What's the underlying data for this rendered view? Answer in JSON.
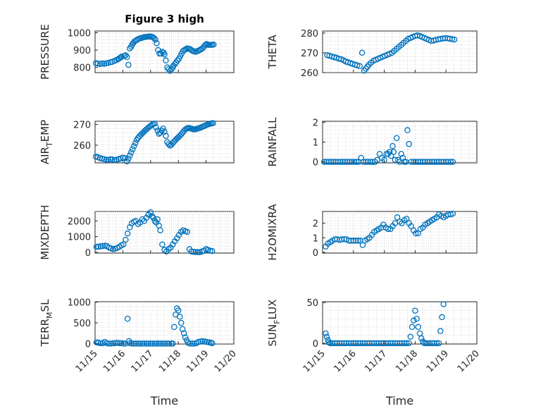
{
  "chart_data": [
    {
      "type": "scatter",
      "title": "Figure 3 high",
      "xlabel": "",
      "ylabel": "PRESSURE",
      "xlim": [
        0,
        5
      ],
      "ylim": [
        770,
        1010
      ],
      "yticks": [
        800,
        900,
        1000
      ],
      "color": "#0072BD",
      "grid": true,
      "x": [
        0.03,
        0.1,
        0.18,
        0.25,
        0.33,
        0.4,
        0.47,
        0.55,
        0.62,
        0.7,
        0.77,
        0.83,
        0.87,
        0.92,
        0.95,
        1.05,
        1.1,
        1.15,
        1.2,
        1.25,
        1.3,
        1.33,
        1.37,
        1.42,
        1.47,
        1.52,
        1.57,
        1.62,
        1.67,
        1.72,
        1.77,
        1.82,
        1.87,
        1.92,
        1.97,
        2.02,
        2.07,
        2.12,
        2.17,
        2.22,
        2.27,
        2.32,
        2.37,
        2.42,
        2.47,
        2.5,
        2.55,
        2.6,
        2.65,
        2.7,
        2.75,
        2.8,
        2.82,
        2.88,
        2.92,
        2.97,
        3.02,
        3.07,
        3.12,
        3.17,
        3.22,
        3.27,
        3.32,
        3.37,
        3.42,
        3.47,
        3.52,
        3.57,
        3.62,
        3.67,
        3.72,
        3.77,
        3.82,
        3.87,
        3.92,
        3.97,
        4.02,
        4.07,
        4.12,
        4.17,
        4.22,
        4.27
      ],
      "y": [
        825,
        822,
        820,
        823,
        821,
        824,
        826,
        830,
        832,
        838,
        842,
        848,
        852,
        857,
        862,
        866,
        870,
        860,
        815,
        910,
        920,
        930,
        940,
        950,
        955,
        960,
        965,
        968,
        970,
        972,
        975,
        976,
        977,
        978,
        978,
        978,
        975,
        970,
        960,
        940,
        900,
        880,
        880,
        890,
        885,
        875,
        840,
        800,
        790,
        780,
        790,
        800,
        810,
        820,
        830,
        840,
        850,
        865,
        880,
        895,
        900,
        905,
        910,
        908,
        906,
        900,
        895,
        892,
        890,
        893,
        896,
        900,
        905,
        910,
        920,
        930,
        935,
        930,
        930,
        930,
        930,
        932
      ]
    },
    {
      "type": "scatter",
      "title": "",
      "xlabel": "",
      "ylabel": "THETA",
      "xlim": [
        0,
        5
      ],
      "ylim": [
        260,
        281
      ],
      "yticks": [
        260,
        270,
        280
      ],
      "color": "#0072BD",
      "grid": true,
      "x": [
        0.15,
        0.22,
        0.3,
        0.38,
        0.45,
        0.52,
        0.6,
        0.68,
        0.75,
        0.82,
        0.9,
        0.97,
        1.05,
        1.12,
        1.2,
        1.28,
        1.35,
        1.4,
        1.45,
        1.5,
        1.57,
        1.65,
        1.72,
        1.8,
        1.87,
        1.95,
        2.02,
        2.1,
        2.17,
        2.25,
        2.32,
        2.4,
        2.47,
        2.55,
        2.62,
        2.7,
        2.77,
        2.85,
        2.92,
        3.0,
        3.07,
        3.15,
        3.22,
        3.3,
        3.37,
        3.45,
        3.52,
        3.6,
        3.67,
        3.75,
        3.82,
        3.9,
        3.97,
        4.05,
        4.12,
        4.2,
        4.27
      ],
      "y": [
        268.8,
        268.5,
        268.1,
        267.8,
        267.5,
        267,
        266.8,
        266.2,
        265.6,
        265.2,
        264.8,
        264.4,
        264,
        263.7,
        263.3,
        270,
        261,
        262,
        263,
        264,
        265,
        266,
        266.5,
        267,
        267.5,
        268,
        268.5,
        269,
        269.5,
        270,
        271,
        272,
        273,
        274,
        275,
        276,
        277,
        277.5,
        278,
        278.5,
        278.8,
        278.5,
        278,
        277.5,
        277,
        276.5,
        276,
        276.2,
        276.5,
        276.8,
        277,
        277.2,
        277.4,
        277.3,
        277.1,
        276.9,
        276.7
      ]
    },
    {
      "type": "scatter",
      "title": "",
      "xlabel": "",
      "ylabel": "AIR_TEMP",
      "ylabel_main": "AIR",
      "ylabel_sub": "T",
      "ylabel_tail": "EMP",
      "xlim": [
        0,
        5
      ],
      "ylim": [
        251.5,
        271.5
      ],
      "yticks": [
        260,
        270
      ],
      "color": "#0072BD",
      "grid": true,
      "x": [
        0.03,
        0.1,
        0.17,
        0.25,
        0.33,
        0.4,
        0.47,
        0.55,
        0.62,
        0.7,
        0.77,
        0.85,
        0.92,
        1.0,
        1.08,
        1.15,
        1.2,
        1.25,
        1.3,
        1.35,
        1.4,
        1.45,
        1.5,
        1.55,
        1.6,
        1.65,
        1.7,
        1.75,
        1.8,
        1.85,
        1.9,
        1.95,
        2.0,
        2.05,
        2.1,
        2.15,
        2.2,
        2.25,
        2.3,
        2.35,
        2.4,
        2.45,
        2.5,
        2.55,
        2.6,
        2.65,
        2.7,
        2.75,
        2.8,
        2.85,
        2.9,
        2.95,
        3.0,
        3.05,
        3.1,
        3.15,
        3.2,
        3.25,
        3.3,
        3.35,
        3.4,
        3.45,
        3.5,
        3.55,
        3.6,
        3.65,
        3.7,
        3.75,
        3.8,
        3.85,
        3.9,
        3.95,
        4.0,
        4.05,
        4.1,
        4.15,
        4.2,
        4.25
      ],
      "y": [
        254.5,
        254.2,
        253.8,
        253.5,
        253.3,
        253,
        253,
        253.2,
        253.1,
        252.8,
        253,
        253.3,
        253.6,
        254,
        253.8,
        252.2,
        253.5,
        255,
        256.5,
        258,
        259.5,
        261,
        262.5,
        263.5,
        264.3,
        265,
        265.7,
        266.3,
        267,
        267.6,
        268.2,
        268.8,
        269.3,
        269.8,
        270.2,
        270.4,
        268.5,
        267,
        265.5,
        266,
        267,
        268,
        266.5,
        264.5,
        261.5,
        260.5,
        259.8,
        260.2,
        261,
        261.8,
        262.5,
        263.2,
        263.8,
        264.5,
        265.2,
        266,
        266.8,
        267.5,
        268,
        268.3,
        268.2,
        268,
        267.8,
        267.6,
        267.6,
        267.8,
        268,
        268.2,
        268.4,
        268.7,
        269,
        269.3,
        269.6,
        269.9,
        270.1,
        270.3,
        270.5,
        270.6
      ]
    },
    {
      "type": "scatter",
      "title": "",
      "xlabel": "",
      "ylabel": "RAINFALL",
      "xlim": [
        0,
        5
      ],
      "ylim": [
        -0.05,
        2.05
      ],
      "yticks": [
        0,
        1,
        2
      ],
      "color": "#0072BD",
      "grid": true,
      "x": [
        0.05,
        0.12,
        0.2,
        0.28,
        0.35,
        0.42,
        0.5,
        0.58,
        0.65,
        0.72,
        0.8,
        0.88,
        0.95,
        1.02,
        1.1,
        1.17,
        1.25,
        1.32,
        1.4,
        1.47,
        1.55,
        1.62,
        1.7,
        1.77,
        1.85,
        1.92,
        2.0,
        2.07,
        2.12,
        2.17,
        2.22,
        2.27,
        2.3,
        2.35,
        2.4,
        2.45,
        2.5,
        2.55,
        2.6,
        2.65,
        2.7,
        2.75,
        2.8,
        2.87,
        2.95,
        3.02,
        3.1,
        3.17,
        3.25,
        3.32,
        3.4,
        3.47,
        3.55,
        3.62,
        3.7,
        3.77,
        3.85,
        3.92,
        4.0,
        4.07,
        4.15,
        4.22
      ],
      "y": [
        0,
        0,
        0,
        0,
        0,
        0,
        0,
        0,
        0,
        0,
        0,
        0,
        0,
        0,
        0,
        0,
        0.2,
        0,
        0,
        0,
        0,
        0,
        0,
        0.1,
        0.4,
        0.2,
        0.1,
        0.4,
        0.4,
        0.5,
        0.3,
        0.8,
        0.5,
        0.1,
        1.2,
        0.1,
        0,
        0.4,
        0.2,
        0,
        0,
        1.6,
        0.9,
        0,
        0,
        0,
        0,
        0,
        0,
        0,
        0,
        0,
        0,
        0,
        0,
        0,
        0,
        0,
        0,
        0,
        0,
        0
      ]
    },
    {
      "type": "scatter",
      "title": "",
      "xlabel": "",
      "ylabel": "MIXDEPTH",
      "xlim": [
        0,
        5
      ],
      "ylim": [
        -50,
        2600
      ],
      "yticks": [
        0,
        1000,
        2000
      ],
      "color": "#0072BD",
      "grid": true,
      "x": [
        0.05,
        0.12,
        0.2,
        0.28,
        0.35,
        0.42,
        0.5,
        0.58,
        0.65,
        0.72,
        0.8,
        0.88,
        0.95,
        1.02,
        1.1,
        1.17,
        1.25,
        1.32,
        1.4,
        1.47,
        1.55,
        1.62,
        1.7,
        1.77,
        1.85,
        1.92,
        2.0,
        2.05,
        2.1,
        2.15,
        2.2,
        2.25,
        2.3,
        2.35,
        2.42,
        2.5,
        2.57,
        2.65,
        2.72,
        2.8,
        2.87,
        2.95,
        3.02,
        3.1,
        3.17,
        3.25,
        3.32,
        3.4,
        3.47,
        3.55,
        3.62,
        3.7,
        3.77,
        3.85,
        3.92,
        4.0,
        4.07,
        4.15,
        4.22
      ],
      "y": [
        350,
        360,
        380,
        400,
        420,
        400,
        300,
        250,
        200,
        230,
        280,
        350,
        450,
        500,
        800,
        1200,
        1600,
        1850,
        1950,
        2000,
        1800,
        1900,
        2100,
        2000,
        2200,
        2400,
        2550,
        2300,
        2200,
        2000,
        1900,
        2100,
        1700,
        1400,
        500,
        150,
        50,
        200,
        300,
        500,
        700,
        900,
        1100,
        1300,
        1400,
        1350,
        1300,
        200,
        50,
        30,
        20,
        10,
        5,
        50,
        100,
        200,
        150,
        100,
        80
      ]
    },
    {
      "type": "scatter",
      "title": "",
      "xlabel": "",
      "ylabel": "H2OMIXRA",
      "xlim": [
        0,
        5
      ],
      "ylim": [
        -0.05,
        2.8
      ],
      "yticks": [
        0,
        1,
        2
      ],
      "color": "#0072BD",
      "grid": true,
      "x": [
        0.1,
        0.17,
        0.25,
        0.32,
        0.4,
        0.47,
        0.55,
        0.62,
        0.7,
        0.77,
        0.85,
        0.92,
        1.0,
        1.08,
        1.15,
        1.22,
        1.3,
        1.37,
        1.45,
        1.52,
        1.6,
        1.67,
        1.75,
        1.82,
        1.9,
        1.97,
        2.05,
        2.12,
        2.2,
        2.27,
        2.35,
        2.42,
        2.5,
        2.57,
        2.65,
        2.72,
        2.8,
        2.87,
        2.95,
        3.02,
        3.1,
        3.17,
        3.25,
        3.32,
        3.4,
        3.47,
        3.55,
        3.62,
        3.7,
        3.77,
        3.85,
        3.92,
        4.0,
        4.07,
        4.15,
        4.22
      ],
      "y": [
        0.4,
        0.6,
        0.7,
        0.8,
        0.9,
        0.9,
        0.85,
        0.9,
        0.9,
        0.9,
        0.8,
        0.8,
        0.8,
        0.8,
        0.8,
        0.8,
        0.5,
        0.8,
        0.9,
        1.0,
        1.2,
        1.4,
        1.5,
        1.6,
        1.7,
        1.9,
        1.7,
        1.6,
        1.6,
        1.8,
        2.0,
        2.4,
        2.1,
        2.0,
        2.2,
        2.3,
        2.0,
        1.8,
        1.5,
        1.3,
        1.3,
        1.6,
        1.7,
        1.9,
        2.0,
        2.1,
        2.2,
        2.3,
        2.4,
        2.6,
        2.5,
        2.4,
        2.5,
        2.6,
        2.6,
        2.65
      ]
    },
    {
      "type": "scatter",
      "title": "",
      "xlabel": "Time",
      "ylabel": "TERR_MSL",
      "ylabel_main": "TERR",
      "ylabel_sub": "M",
      "ylabel_tail": "SL",
      "xlim": [
        0,
        5
      ],
      "ylim": [
        -10,
        1010
      ],
      "yticks": [
        0,
        500,
        1000
      ],
      "xticks": [
        0,
        1,
        2,
        3,
        4,
        5
      ],
      "xticklabels": [
        "11/15",
        "11/16",
        "11/17",
        "11/18",
        "11/19",
        "11/20"
      ],
      "color": "#0072BD",
      "grid": true,
      "x": [
        0.05,
        0.12,
        0.2,
        0.28,
        0.35,
        0.42,
        0.5,
        0.58,
        0.65,
        0.72,
        0.8,
        0.88,
        0.95,
        1.02,
        1.1,
        1.17,
        1.22,
        1.25,
        1.32,
        1.4,
        1.47,
        1.55,
        1.62,
        1.7,
        1.77,
        1.85,
        1.92,
        2.0,
        2.07,
        2.15,
        2.22,
        2.3,
        2.37,
        2.45,
        2.52,
        2.6,
        2.67,
        2.75,
        2.8,
        2.85,
        2.9,
        2.95,
        3.0,
        3.05,
        3.1,
        3.15,
        3.2,
        3.25,
        3.3,
        3.35,
        3.42,
        3.5,
        3.57,
        3.65,
        3.72,
        3.8,
        3.87,
        3.95,
        4.02,
        4.1,
        4.17,
        4.22
      ],
      "y": [
        30,
        20,
        10,
        10,
        40,
        10,
        0,
        0,
        10,
        10,
        20,
        10,
        10,
        0,
        0,
        600,
        60,
        10,
        0,
        0,
        0,
        0,
        0,
        0,
        0,
        0,
        0,
        0,
        0,
        0,
        0,
        0,
        0,
        0,
        0,
        0,
        0,
        0,
        0,
        400,
        700,
        850,
        800,
        650,
        500,
        350,
        250,
        150,
        80,
        20,
        0,
        0,
        0,
        10,
        40,
        50,
        60,
        50,
        40,
        30,
        20,
        10
      ]
    },
    {
      "type": "scatter",
      "title": "",
      "xlabel": "Time",
      "ylabel": "SUN_FLUX",
      "ylabel_main": "SUN",
      "ylabel_sub": "F",
      "ylabel_tail": "LUX",
      "xlim": [
        0,
        5
      ],
      "ylim": [
        -1,
        51
      ],
      "yticks": [
        0,
        50
      ],
      "xticks": [
        0,
        1,
        2,
        3,
        4,
        5
      ],
      "xticklabels": [
        "11/15",
        "11/16",
        "11/17",
        "11/18",
        "11/19",
        "11/20"
      ],
      "color": "#0072BD",
      "grid": true,
      "x": [
        0.1,
        0.13,
        0.17,
        0.2,
        0.25,
        0.32,
        0.4,
        0.47,
        0.55,
        0.62,
        0.7,
        0.77,
        0.85,
        0.92,
        1.0,
        1.07,
        1.15,
        1.22,
        1.3,
        1.37,
        1.45,
        1.52,
        1.6,
        1.67,
        1.75,
        1.82,
        1.9,
        1.97,
        2.05,
        2.12,
        2.2,
        2.27,
        2.35,
        2.42,
        2.5,
        2.57,
        2.65,
        2.72,
        2.8,
        2.85,
        2.9,
        2.95,
        3.0,
        3.05,
        3.1,
        3.15,
        3.2,
        3.25,
        3.3,
        3.35,
        3.4,
        3.47,
        3.55,
        3.62,
        3.7,
        3.77,
        3.82,
        3.87,
        3.92
      ],
      "y": [
        12,
        8,
        4,
        1,
        0,
        0,
        0,
        0,
        0,
        0,
        0,
        0,
        0,
        0,
        0,
        0,
        0,
        0,
        0,
        0,
        0,
        0,
        0,
        0,
        0,
        0,
        0,
        0,
        0,
        0,
        0,
        0,
        0,
        0,
        0,
        0,
        0,
        0,
        0,
        8,
        20,
        28,
        40,
        30,
        20,
        12,
        6,
        2,
        0,
        0,
        0,
        0,
        0,
        0,
        0,
        0,
        15,
        32,
        48
      ]
    }
  ]
}
